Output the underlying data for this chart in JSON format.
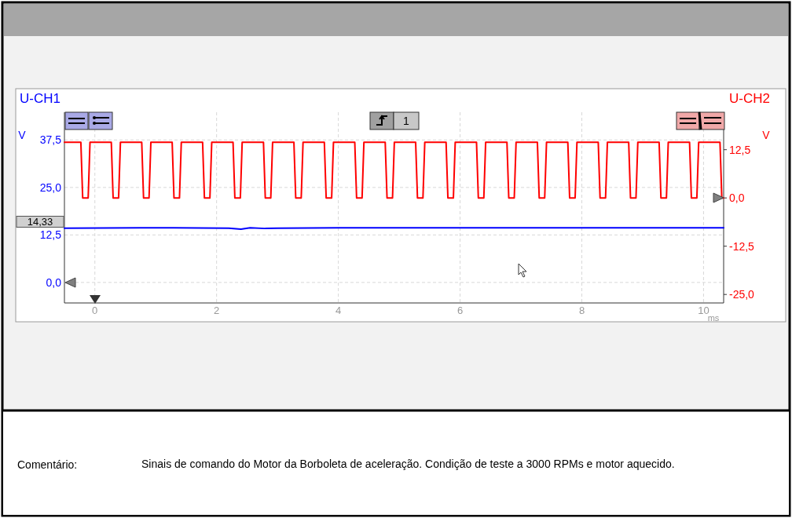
{
  "chart_data": {
    "type": "line",
    "xlabel": "ms",
    "ylabel": "V",
    "y2label": "V",
    "xlim": [
      -0.5,
      10.33
    ],
    "xticks": [
      0,
      2,
      4,
      6,
      8,
      10
    ],
    "ylim": [
      -5.4,
      44.8
    ],
    "yticks": [
      {
        "value": 0,
        "label": "0,0"
      },
      {
        "value": 12.5,
        "label": "12,5"
      },
      {
        "value": 25,
        "label": "25,0"
      },
      {
        "value": 37.5,
        "label": "37,5"
      }
    ],
    "y2lim": [
      -27.2,
      22.2
    ],
    "y2ticks": [
      {
        "value": -25,
        "label": "-25,0"
      },
      {
        "value": -12.5,
        "label": "-12,5"
      },
      {
        "value": 0,
        "label": "0,0"
      },
      {
        "value": 12.5,
        "label": "12,5"
      }
    ],
    "grid": true,
    "series": [
      {
        "name": "U-CH1",
        "color": "#0000ff",
        "x": [
          -0.5,
          0.75,
          1.3,
          2.2,
          2.4,
          2.55,
          2.8,
          3.0,
          4.0,
          10.33
        ],
        "values": [
          14.3,
          14.4,
          14.4,
          14.3,
          14.0,
          14.4,
          14.2,
          14.3,
          14.4,
          14.4
        ]
      },
      {
        "name": "U-CH2",
        "color": "#ff0000",
        "axis": "y2",
        "x": [
          -0.5,
          -0.23,
          -0.2,
          -0.11,
          -0.08,
          0.27,
          0.3,
          0.39,
          0.42,
          0.77,
          0.8,
          0.89,
          0.92,
          1.27,
          1.3,
          1.39,
          1.42,
          1.77,
          1.8,
          1.89,
          1.92,
          2.27,
          2.3,
          2.39,
          2.42,
          2.77,
          2.8,
          2.89,
          2.92,
          3.27,
          3.3,
          3.39,
          3.42,
          3.77,
          3.8,
          3.89,
          3.92,
          4.27,
          4.3,
          4.39,
          4.42,
          4.77,
          4.8,
          4.89,
          4.92,
          5.27,
          5.3,
          5.39,
          5.42,
          5.77,
          5.8,
          5.89,
          5.92,
          6.27,
          6.3,
          6.39,
          6.42,
          6.77,
          6.8,
          6.89,
          6.92,
          7.27,
          7.3,
          7.39,
          7.42,
          7.77,
          7.8,
          7.89,
          7.92,
          8.27,
          8.3,
          8.39,
          8.42,
          8.77,
          8.8,
          8.89,
          8.92,
          9.27,
          9.3,
          9.39,
          9.42,
          9.77,
          9.8,
          9.89,
          9.92,
          10.27,
          10.3,
          10.33
        ],
        "values": [
          14.4,
          14.4,
          0,
          0,
          14.4,
          14.4,
          0,
          0,
          14.4,
          14.4,
          0,
          0,
          14.4,
          14.4,
          0,
          0,
          14.4,
          14.4,
          0,
          0,
          14.4,
          14.4,
          0,
          0,
          14.4,
          14.4,
          0,
          0,
          14.4,
          14.4,
          0,
          0,
          14.4,
          14.4,
          0,
          0,
          14.4,
          14.4,
          0,
          0,
          14.4,
          14.4,
          0,
          0,
          14.4,
          14.4,
          0,
          0,
          14.4,
          14.4,
          0,
          0,
          14.4,
          14.4,
          0,
          0,
          14.4,
          14.4,
          0,
          0,
          14.4,
          14.4,
          0,
          0,
          14.4,
          14.4,
          0,
          0,
          14.4,
          14.4,
          0,
          0,
          14.4,
          14.4,
          0,
          0,
          14.4,
          14.4,
          0,
          0,
          14.4,
          14.4,
          0,
          0,
          14.4,
          14.4,
          0,
          0
        ]
      }
    ],
    "annotations": [
      {
        "text": "14,33",
        "x": -0.5,
        "y": 14.33
      },
      "1",
      "Comentário:",
      "Sinais de comando do Motor da Borboleta de aceleração. Condição de teste a 3000 RPMs e motor aquecido."
    ]
  }
}
